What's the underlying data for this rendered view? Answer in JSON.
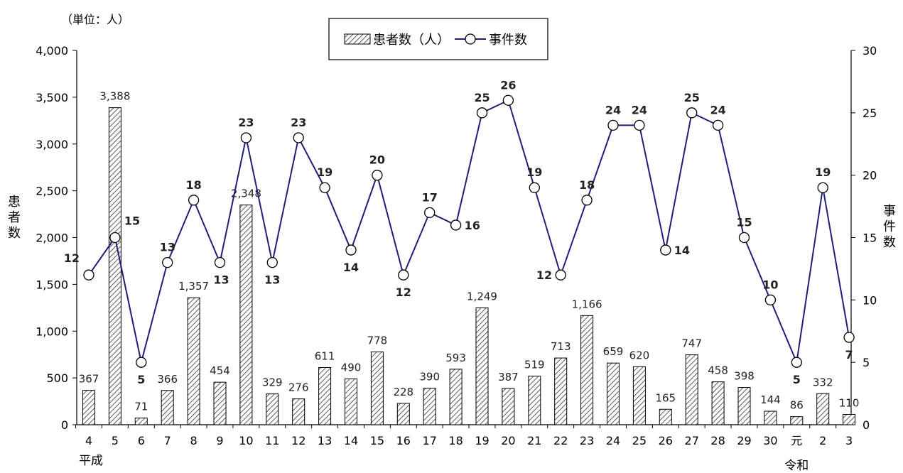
{
  "chart_data": {
    "type": "bar+line",
    "unit_note": "（単位：人）",
    "categories": [
      "4",
      "5",
      "6",
      "7",
      "8",
      "9",
      "10",
      "11",
      "12",
      "13",
      "14",
      "15",
      "16",
      "17",
      "18",
      "19",
      "20",
      "21",
      "22",
      "23",
      "24",
      "25",
      "26",
      "27",
      "28",
      "29",
      "30",
      "元",
      "2",
      "3"
    ],
    "era_labels": [
      {
        "text": "平成",
        "category": "4"
      },
      {
        "text": "令和",
        "category": "元"
      }
    ],
    "left_axis": {
      "title": "患者数",
      "min": 0,
      "max": 4000,
      "ticks": [
        0,
        500,
        1000,
        1500,
        2000,
        2500,
        3000,
        3500,
        4000
      ]
    },
    "right_axis": {
      "title": "事件数",
      "min": 0,
      "max": 30,
      "ticks": [
        0,
        5,
        10,
        15,
        20,
        25,
        30
      ]
    },
    "series": [
      {
        "name": "患者数（人）",
        "kind": "bar",
        "axis": "left",
        "values": [
          367,
          3388,
          71,
          366,
          1357,
          454,
          2348,
          329,
          276,
          611,
          490,
          778,
          228,
          390,
          593,
          1249,
          387,
          519,
          713,
          1166,
          659,
          620,
          165,
          747,
          458,
          398,
          144,
          86,
          332,
          110
        ]
      },
      {
        "name": "事件数",
        "kind": "line",
        "axis": "right",
        "color": "#1f1f7a",
        "values": [
          12,
          15,
          5,
          13,
          18,
          13,
          23,
          13,
          23,
          19,
          14,
          20,
          12,
          17,
          16,
          25,
          26,
          19,
          12,
          18,
          24,
          24,
          14,
          25,
          24,
          15,
          10,
          5,
          19,
          7
        ]
      }
    ],
    "legend_position": "top-center",
    "grid": false
  }
}
